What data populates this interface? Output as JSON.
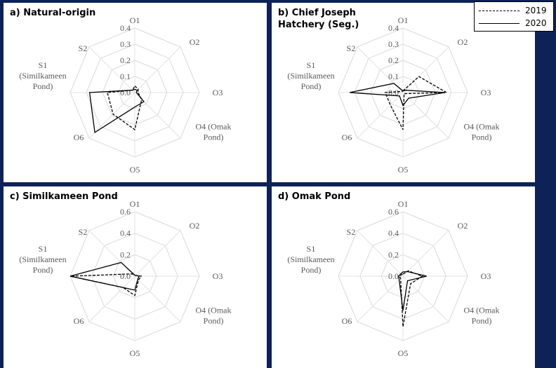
{
  "legend": {
    "items": [
      {
        "label": "2019",
        "style": "dashed"
      },
      {
        "label": "2020",
        "style": "solid"
      }
    ]
  },
  "chart_data": [
    {
      "type": "radar",
      "title": "a) Natural-origin",
      "axes": [
        "O1",
        "O2",
        "O3",
        "O4 (Omak\nPond)",
        "O5",
        "O6",
        "S1\n(Similkameen\nPond)",
        "S2"
      ],
      "ticks": [
        "0.0",
        "0.1",
        "0.2",
        "0.3",
        "0.4"
      ],
      "rlim": [
        0,
        0.4
      ],
      "series": [
        {
          "name": "2019",
          "style": "dashed",
          "values": [
            0.04,
            0.03,
            0.02,
            0.06,
            0.23,
            0.19,
            0.17,
            0.02
          ]
        },
        {
          "name": "2020",
          "style": "solid",
          "values": [
            0.02,
            0.02,
            0.01,
            0.08,
            0.09,
            0.35,
            0.28,
            0.02
          ]
        }
      ]
    },
    {
      "type": "radar",
      "title": "b) Chief Joseph\nHatchery (Seg.)",
      "axes": [
        "O1",
        "O2",
        "O3",
        "O4 (Omak\nPond)",
        "O5",
        "O6",
        "S1\n(Similkameen\nPond)",
        "S2"
      ],
      "ticks": [
        "0.0",
        "0.1",
        "0.2",
        "0.3",
        "0.4"
      ],
      "rlim": [
        0,
        0.4
      ],
      "series": [
        {
          "name": "2019",
          "style": "dashed",
          "values": [
            0.01,
            0.14,
            0.27,
            0.01,
            0.23,
            0.11,
            0.11,
            0.01
          ]
        },
        {
          "name": "2020",
          "style": "solid",
          "values": [
            0.01,
            0.02,
            0.26,
            0.05,
            0.08,
            0.03,
            0.33,
            0.08
          ]
        }
      ]
    },
    {
      "type": "radar",
      "title": "c) Similkameen Pond",
      "axes": [
        "O1",
        "O2",
        "O3",
        "O4 (Omak\nPond)",
        "O5",
        "O6",
        "S1\n(Similkameen\nPond)",
        "S2"
      ],
      "ticks": [
        "0.0",
        "0.2",
        "0.4",
        "0.6"
      ],
      "rlim": [
        0,
        0.6
      ],
      "series": [
        {
          "name": "2019",
          "style": "dashed",
          "values": [
            0.01,
            0.01,
            0.06,
            0.05,
            0.18,
            0.15,
            0.6,
            0.03
          ]
        },
        {
          "name": "2020",
          "style": "solid",
          "values": [
            0.01,
            0.01,
            0.04,
            0.04,
            0.13,
            0.15,
            0.6,
            0.18
          ]
        }
      ]
    },
    {
      "type": "radar",
      "title": "d) Omak Pond",
      "axes": [
        "O1",
        "O2",
        "O3",
        "O4 (Omak\nPond)",
        "O5",
        "O6",
        "S1\n(Similkameen\nPond)",
        "S2"
      ],
      "ticks": [
        "0.0",
        "0.2",
        "0.4",
        "0.6"
      ],
      "rlim": [
        0,
        0.6
      ],
      "series": [
        {
          "name": "2019",
          "style": "dashed",
          "values": [
            0.02,
            0.07,
            0.18,
            0.1,
            0.47,
            0.03,
            0.03,
            0.02
          ]
        },
        {
          "name": "2020",
          "style": "solid",
          "values": [
            0.04,
            0.06,
            0.22,
            0.06,
            0.32,
            0.05,
            0.04,
            0.03
          ]
        }
      ]
    }
  ]
}
